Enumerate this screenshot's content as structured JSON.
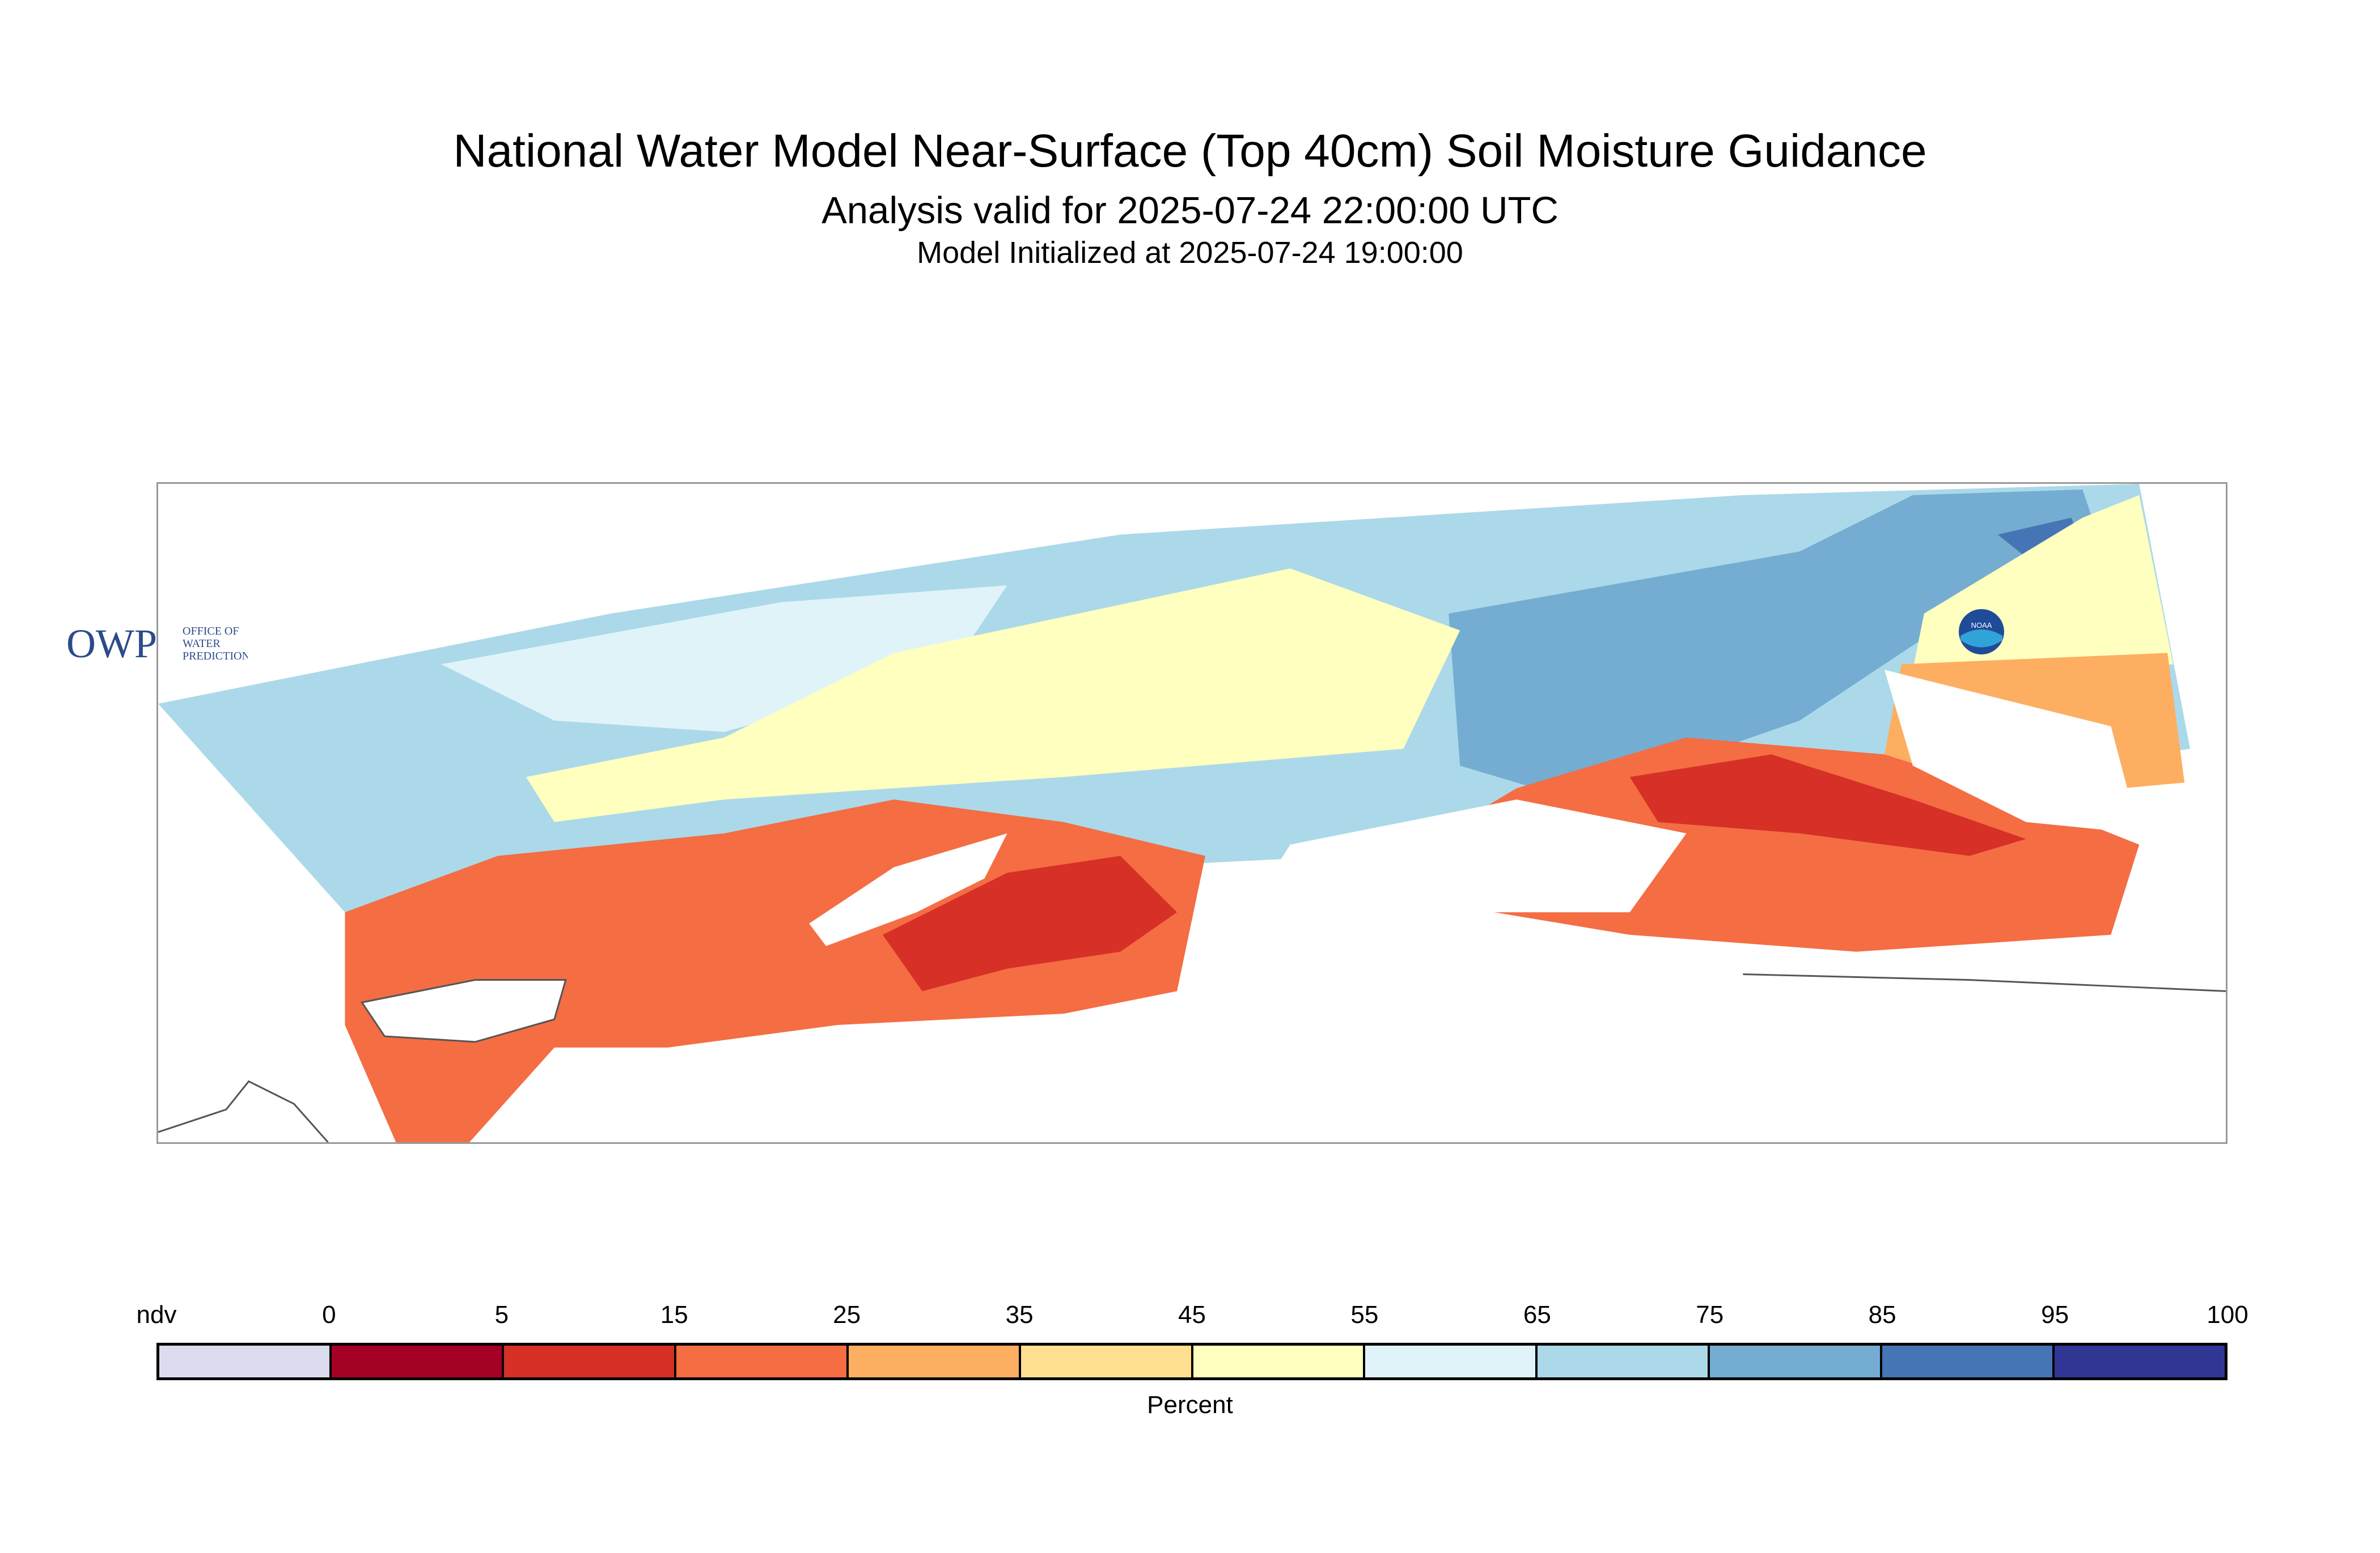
{
  "title": {
    "main": "National Water Model Near-Surface (Top 40cm) Soil Moisture Guidance",
    "valid": "Analysis valid for 2025-07-24 22:00:00 UTC",
    "init": "Model Initialized at 2025-07-24 19:00:00"
  },
  "logos": {
    "owp_mark": "OWP",
    "owp_text": [
      "OFFICE OF",
      "WATER",
      "PREDICTION"
    ],
    "noaa": "NOAA"
  },
  "legend": {
    "label": "Percent",
    "ticks": [
      "ndv",
      "0",
      "5",
      "15",
      "25",
      "35",
      "45",
      "55",
      "65",
      "75",
      "85",
      "95",
      "100"
    ],
    "colors": [
      "#dcdcef",
      "#a50026",
      "#d73027",
      "#f46d43",
      "#fdae61",
      "#fee090",
      "#ffffbf",
      "#e0f3f8",
      "#abd9e9",
      "#74add1",
      "#4575b4",
      "#313695"
    ]
  },
  "map": {
    "colors": {
      "dry": "#d73027",
      "low": "#f46d43",
      "mid_low": "#fdae61",
      "mid": "#ffffbf",
      "mid_high": "#e0f3f8",
      "high": "#abd9e9",
      "very_high": "#74add1",
      "wettest": "#4575b4"
    }
  }
}
